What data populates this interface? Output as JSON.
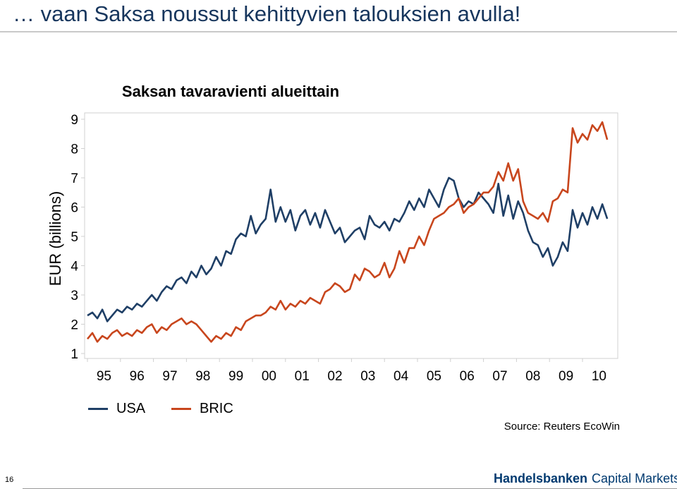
{
  "slide": {
    "title": "… vaan Saksa noussut kehittyvien talouksien avulla!",
    "page_number": "16",
    "source": "Source: Reuters EcoWin",
    "logo": {
      "brand": "Handelsbanken",
      "sub": "Capital Markets"
    }
  },
  "colors": {
    "title": "#17365d",
    "usa": "#1f3f66",
    "bric": "#c8461d"
  },
  "chart_data": {
    "type": "line",
    "title": "Saksan tavaravienti alueittain",
    "xlabel": "",
    "ylabel": "EUR (billions)",
    "ylim": [
      1,
      9
    ],
    "yticks": [
      "1",
      "2",
      "3",
      "4",
      "5",
      "6",
      "7",
      "8",
      "9"
    ],
    "xlim": [
      1995,
      2011
    ],
    "xtick_labels": [
      "95",
      "96",
      "97",
      "98",
      "99",
      "00",
      "01",
      "02",
      "03",
      "04",
      "05",
      "06",
      "07",
      "08",
      "09",
      "10"
    ],
    "grid": false,
    "legend_position": "bottom-left",
    "series": [
      {
        "name": "USA",
        "color": "#1f3f66",
        "x": [
          1995.0,
          1995.15,
          1995.3,
          1995.45,
          1995.6,
          1995.75,
          1995.9,
          1996.05,
          1996.2,
          1996.35,
          1996.5,
          1996.65,
          1996.8,
          1996.95,
          1997.1,
          1997.25,
          1997.4,
          1997.55,
          1997.7,
          1997.85,
          1998.0,
          1998.15,
          1998.3,
          1998.45,
          1998.6,
          1998.75,
          1998.9,
          1999.05,
          1999.2,
          1999.35,
          1999.5,
          1999.65,
          1999.8,
          1999.95,
          2000.1,
          2000.25,
          2000.4,
          2000.55,
          2000.7,
          2000.85,
          2001.0,
          2001.15,
          2001.3,
          2001.45,
          2001.6,
          2001.75,
          2001.9,
          2002.05,
          2002.2,
          2002.35,
          2002.5,
          2002.65,
          2002.8,
          2002.95,
          2003.1,
          2003.25,
          2003.4,
          2003.55,
          2003.7,
          2003.85,
          2004.0,
          2004.15,
          2004.3,
          2004.45,
          2004.6,
          2004.75,
          2004.9,
          2005.05,
          2005.2,
          2005.35,
          2005.5,
          2005.65,
          2005.8,
          2005.95,
          2006.1,
          2006.25,
          2006.4,
          2006.55,
          2006.7,
          2006.85,
          2007.0,
          2007.15,
          2007.3,
          2007.45,
          2007.6,
          2007.75,
          2007.9,
          2008.05,
          2008.2,
          2008.35,
          2008.5,
          2008.65,
          2008.8,
          2008.95,
          2009.1,
          2009.25,
          2009.4,
          2009.55,
          2009.7,
          2009.85,
          2010.0,
          2010.15,
          2010.3,
          2010.45,
          2010.6,
          2010.75
        ],
        "values": [
          2.3,
          2.4,
          2.2,
          2.5,
          2.1,
          2.3,
          2.5,
          2.4,
          2.6,
          2.5,
          2.7,
          2.6,
          2.8,
          3.0,
          2.8,
          3.1,
          3.3,
          3.2,
          3.5,
          3.6,
          3.4,
          3.8,
          3.6,
          4.0,
          3.7,
          3.9,
          4.3,
          4.0,
          4.5,
          4.4,
          4.9,
          5.1,
          5.0,
          5.7,
          5.1,
          5.4,
          5.6,
          6.6,
          5.5,
          6.0,
          5.5,
          5.9,
          5.2,
          5.7,
          5.9,
          5.4,
          5.8,
          5.3,
          5.9,
          5.5,
          5.1,
          5.3,
          4.8,
          5.0,
          5.2,
          5.3,
          4.9,
          5.7,
          5.4,
          5.3,
          5.5,
          5.2,
          5.6,
          5.5,
          5.8,
          6.2,
          5.9,
          6.3,
          6.0,
          6.6,
          6.3,
          6.0,
          6.6,
          7.0,
          6.9,
          6.3,
          6.0,
          6.2,
          6.1,
          6.5,
          6.3,
          6.1,
          5.8,
          6.8,
          5.7,
          6.4,
          5.6,
          6.2,
          5.8,
          5.2,
          4.8,
          4.7,
          4.3,
          4.6,
          4.0,
          4.3,
          4.8,
          4.5,
          5.9,
          5.3,
          5.8,
          5.4,
          6.0,
          5.6,
          6.1,
          5.6
        ]
      },
      {
        "name": "BRIC",
        "color": "#c8461d",
        "x": [
          1995.0,
          1995.15,
          1995.3,
          1995.45,
          1995.6,
          1995.75,
          1995.9,
          1996.05,
          1996.2,
          1996.35,
          1996.5,
          1996.65,
          1996.8,
          1996.95,
          1997.1,
          1997.25,
          1997.4,
          1997.55,
          1997.7,
          1997.85,
          1998.0,
          1998.15,
          1998.3,
          1998.45,
          1998.6,
          1998.75,
          1998.9,
          1999.05,
          1999.2,
          1999.35,
          1999.5,
          1999.65,
          1999.8,
          1999.95,
          2000.1,
          2000.25,
          2000.4,
          2000.55,
          2000.7,
          2000.85,
          2001.0,
          2001.15,
          2001.3,
          2001.45,
          2001.6,
          2001.75,
          2001.9,
          2002.05,
          2002.2,
          2002.35,
          2002.5,
          2002.65,
          2002.8,
          2002.95,
          2003.1,
          2003.25,
          2003.4,
          2003.55,
          2003.7,
          2003.85,
          2004.0,
          2004.15,
          2004.3,
          2004.45,
          2004.6,
          2004.75,
          2004.9,
          2005.05,
          2005.2,
          2005.35,
          2005.5,
          2005.65,
          2005.8,
          2005.95,
          2006.1,
          2006.25,
          2006.4,
          2006.55,
          2006.7,
          2006.85,
          2007.0,
          2007.15,
          2007.3,
          2007.45,
          2007.6,
          2007.75,
          2007.9,
          2008.05,
          2008.2,
          2008.35,
          2008.5,
          2008.65,
          2008.8,
          2008.95,
          2009.1,
          2009.25,
          2009.4,
          2009.55,
          2009.7,
          2009.85,
          2010.0,
          2010.15,
          2010.3,
          2010.45,
          2010.6,
          2010.75
        ],
        "values": [
          1.5,
          1.7,
          1.4,
          1.6,
          1.5,
          1.7,
          1.8,
          1.6,
          1.7,
          1.6,
          1.8,
          1.7,
          1.9,
          2.0,
          1.7,
          1.9,
          1.8,
          2.0,
          2.1,
          2.2,
          2.0,
          2.1,
          2.0,
          1.8,
          1.6,
          1.4,
          1.6,
          1.5,
          1.7,
          1.6,
          1.9,
          1.8,
          2.1,
          2.2,
          2.3,
          2.3,
          2.4,
          2.6,
          2.5,
          2.8,
          2.5,
          2.7,
          2.6,
          2.8,
          2.7,
          2.9,
          2.8,
          2.7,
          3.1,
          3.2,
          3.4,
          3.3,
          3.1,
          3.2,
          3.7,
          3.5,
          3.9,
          3.8,
          3.6,
          3.7,
          4.1,
          3.6,
          3.9,
          4.5,
          4.1,
          4.6,
          4.6,
          5.0,
          4.7,
          5.2,
          5.6,
          5.7,
          5.8,
          6.0,
          6.1,
          6.3,
          5.8,
          6.0,
          6.1,
          6.3,
          6.5,
          6.5,
          6.7,
          7.2,
          6.9,
          7.5,
          6.9,
          7.3,
          6.2,
          5.8,
          5.7,
          5.6,
          5.8,
          5.5,
          6.2,
          6.3,
          6.6,
          6.5,
          8.7,
          8.2,
          8.5,
          8.3,
          8.8,
          8.6,
          8.9,
          8.3
        ]
      }
    ]
  }
}
